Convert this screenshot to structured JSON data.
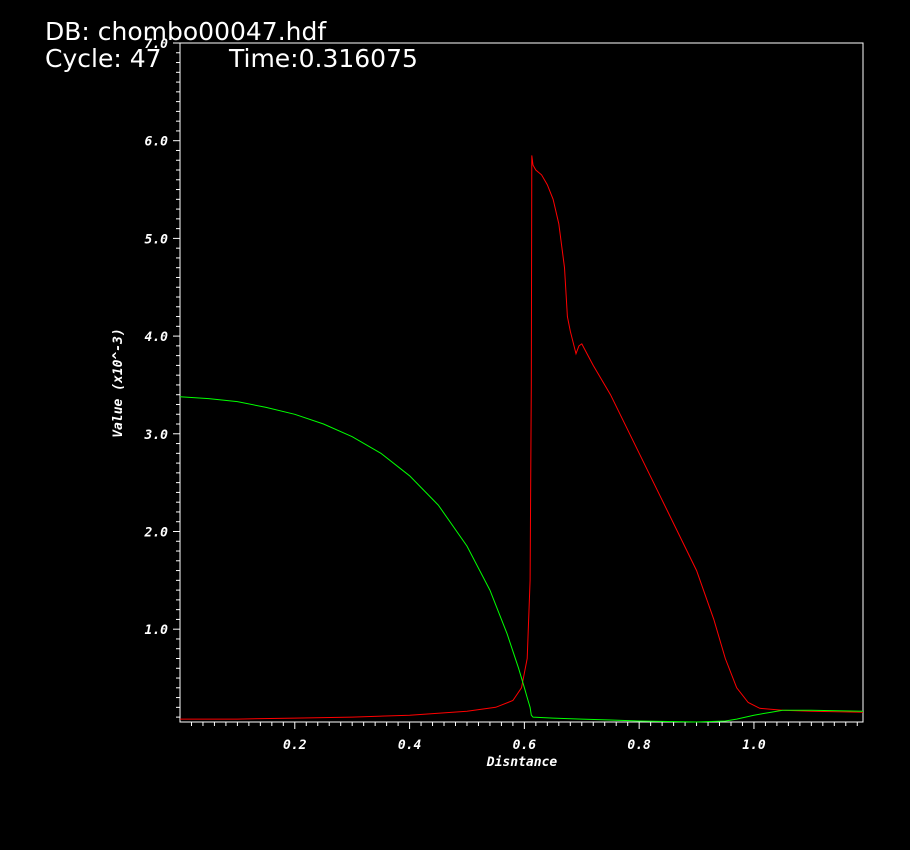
{
  "header": {
    "db_label": "DB: chombo00047.hdf",
    "cycle_label": "Cycle: 47",
    "time_label": "Time:0.316075"
  },
  "chart_data": {
    "type": "line",
    "xlabel": "Disntance",
    "ylabel": "Value (x10^-3)",
    "xlim": [
      0.0,
      1.19
    ],
    "ylim": [
      0.05,
      7.0
    ],
    "x_ticks": [
      0.2,
      0.4,
      0.6,
      0.8,
      1.0
    ],
    "x_tick_labels": [
      "0.2",
      "0.4",
      "0.6",
      "0.8",
      "1.0"
    ],
    "y_ticks": [
      1.0,
      2.0,
      3.0,
      4.0,
      5.0,
      6.0,
      7.0
    ],
    "y_tick_labels": [
      "1.0",
      "2.0",
      "3.0",
      "4.0",
      "5.0",
      "6.0",
      "7.0"
    ],
    "grid": false,
    "series": [
      {
        "color": "#ff0000",
        "x": [
          0.0,
          0.1,
          0.2,
          0.3,
          0.4,
          0.45,
          0.5,
          0.55,
          0.58,
          0.595,
          0.605,
          0.61,
          0.612,
          0.613,
          0.615,
          0.62,
          0.63,
          0.64,
          0.65,
          0.66,
          0.67,
          0.675,
          0.68,
          0.69,
          0.695,
          0.7,
          0.72,
          0.75,
          0.8,
          0.85,
          0.9,
          0.93,
          0.95,
          0.97,
          0.99,
          1.01,
          1.05,
          1.1,
          1.19
        ],
        "y": [
          0.08,
          0.08,
          0.09,
          0.1,
          0.12,
          0.14,
          0.16,
          0.2,
          0.27,
          0.4,
          0.7,
          1.5,
          3.5,
          5.85,
          5.75,
          5.7,
          5.65,
          5.55,
          5.4,
          5.15,
          4.7,
          4.2,
          4.05,
          3.82,
          3.9,
          3.92,
          3.7,
          3.4,
          2.8,
          2.2,
          1.6,
          1.1,
          0.7,
          0.4,
          0.25,
          0.19,
          0.17,
          0.16,
          0.15
        ]
      },
      {
        "color": "#00ff00",
        "x": [
          0.0,
          0.05,
          0.1,
          0.15,
          0.2,
          0.25,
          0.3,
          0.35,
          0.4,
          0.45,
          0.5,
          0.54,
          0.57,
          0.59,
          0.6,
          0.605,
          0.61,
          0.612,
          0.615,
          0.65,
          0.7,
          0.75,
          0.8,
          0.9,
          0.95,
          0.97,
          1.0,
          1.03,
          1.05,
          1.1,
          1.19
        ],
        "y": [
          3.38,
          3.36,
          3.33,
          3.27,
          3.2,
          3.1,
          2.97,
          2.8,
          2.57,
          2.27,
          1.85,
          1.4,
          0.95,
          0.6,
          0.4,
          0.3,
          0.2,
          0.12,
          0.1,
          0.09,
          0.08,
          0.07,
          0.06,
          0.05,
          0.06,
          0.08,
          0.12,
          0.15,
          0.17,
          0.17,
          0.16
        ]
      }
    ]
  }
}
